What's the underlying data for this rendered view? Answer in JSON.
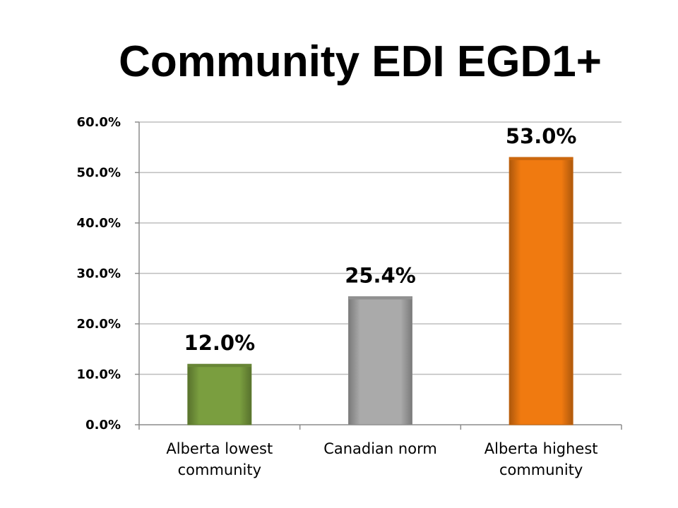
{
  "title": "Community EDI EGD1+",
  "colors": {
    "green": "#7a9e3f",
    "gray": "#aaaaaa",
    "orange": "#f07a10",
    "grid": "#bdbdbd",
    "axis": "#8c8c8c"
  },
  "chart_data": {
    "type": "bar",
    "title": "Community EDI EGD1+",
    "categories": [
      [
        "Alberta lowest",
        "community"
      ],
      [
        "Canadian norm"
      ],
      [
        "Alberta highest",
        "community"
      ]
    ],
    "values": [
      12.0,
      25.4,
      53.0
    ],
    "data_labels": [
      "12.0%",
      "25.4%",
      "53.0%"
    ],
    "bar_colors": [
      "#7a9e3f",
      "#aaaaaa",
      "#f07a10"
    ],
    "ylim": [
      0,
      60
    ],
    "yticks": [
      0,
      10,
      20,
      30,
      40,
      50,
      60
    ],
    "ytick_labels": [
      "0.0%",
      "10.0%",
      "20.0%",
      "30.0%",
      "40.0%",
      "50.0%",
      "60.0%"
    ],
    "xlabel": "",
    "ylabel": "",
    "grid": true,
    "legend": "none"
  }
}
